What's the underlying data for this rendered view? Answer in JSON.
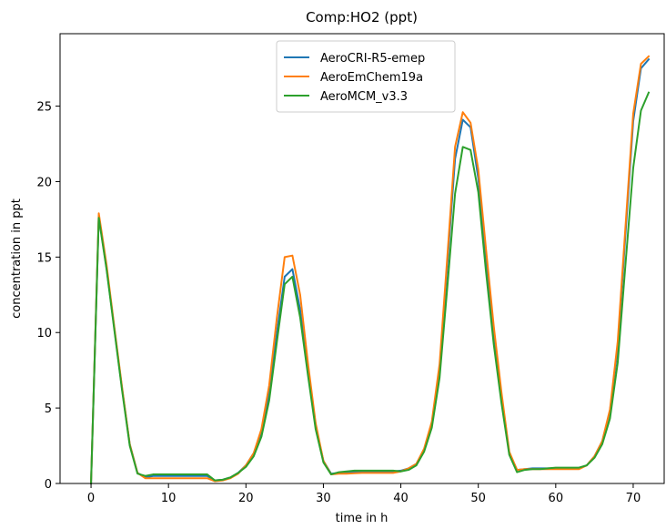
{
  "chart_data": {
    "type": "line",
    "title": "Comp:HO2 (ppt)",
    "xlabel": "time in h",
    "ylabel": "concentration in ppt",
    "xlim": [
      -4,
      74
    ],
    "ylim": [
      0,
      29.8
    ],
    "xticks": [
      0,
      10,
      20,
      30,
      40,
      50,
      60,
      70
    ],
    "yticks": [
      0,
      5,
      10,
      15,
      20,
      25
    ],
    "grid": false,
    "legend_position": "top-center",
    "x": [
      0,
      1,
      2,
      3,
      4,
      5,
      6,
      7,
      8,
      9,
      10,
      11,
      12,
      13,
      14,
      15,
      16,
      17,
      18,
      19,
      20,
      21,
      22,
      23,
      24,
      25,
      26,
      27,
      28,
      29,
      30,
      31,
      32,
      33,
      34,
      35,
      36,
      37,
      38,
      39,
      40,
      41,
      42,
      43,
      44,
      45,
      46,
      47,
      48,
      49,
      50,
      51,
      52,
      53,
      54,
      55,
      56,
      57,
      58,
      59,
      60,
      61,
      62,
      63,
      64,
      65,
      66,
      67,
      68,
      69,
      70,
      71,
      72
    ],
    "series": [
      {
        "name": "AeroCRI-R5-emep",
        "color": "#1f77b4",
        "values": [
          0,
          17.7,
          14.3,
          10.3,
          6.3,
          2.6,
          0.7,
          0.4,
          0.5,
          0.5,
          0.5,
          0.5,
          0.5,
          0.5,
          0.5,
          0.5,
          0.2,
          0.25,
          0.4,
          0.7,
          1.2,
          2.0,
          3.4,
          6.0,
          10.0,
          13.7,
          14.2,
          11.5,
          7.5,
          3.8,
          1.5,
          0.65,
          0.7,
          0.75,
          0.78,
          0.8,
          0.8,
          0.8,
          0.8,
          0.8,
          0.85,
          1.0,
          1.3,
          2.2,
          4.0,
          7.5,
          14.5,
          21.5,
          24.1,
          23.6,
          20.2,
          15.0,
          10.0,
          5.8,
          2.0,
          0.9,
          0.95,
          1.0,
          1.0,
          1.0,
          1.0,
          1.0,
          1.0,
          1.0,
          1.2,
          1.8,
          2.8,
          4.8,
          9.0,
          16.5,
          24.0,
          27.5,
          28.1
        ]
      },
      {
        "name": "AeroEmChem19a",
        "color": "#ff7f0e",
        "values": [
          0,
          17.9,
          14.5,
          10.4,
          6.4,
          2.6,
          0.7,
          0.35,
          0.35,
          0.35,
          0.35,
          0.35,
          0.35,
          0.35,
          0.35,
          0.35,
          0.15,
          0.2,
          0.35,
          0.65,
          1.2,
          2.0,
          3.6,
          6.5,
          11.0,
          15.0,
          15.1,
          12.5,
          8.0,
          4.0,
          1.5,
          0.6,
          0.65,
          0.65,
          0.68,
          0.7,
          0.7,
          0.7,
          0.7,
          0.7,
          0.8,
          1.0,
          1.3,
          2.3,
          4.1,
          7.9,
          15.0,
          22.3,
          24.6,
          23.9,
          20.8,
          15.5,
          10.4,
          6.0,
          2.1,
          0.9,
          0.95,
          0.95,
          0.95,
          0.95,
          0.95,
          0.95,
          0.95,
          0.95,
          1.2,
          1.8,
          2.8,
          4.9,
          9.4,
          17.0,
          24.5,
          27.8,
          28.3
        ]
      },
      {
        "name": "AeroMCM_v3.3",
        "color": "#2ca02c",
        "values": [
          0,
          17.6,
          14.2,
          10.2,
          6.2,
          2.5,
          0.65,
          0.5,
          0.6,
          0.6,
          0.6,
          0.6,
          0.6,
          0.6,
          0.6,
          0.6,
          0.2,
          0.25,
          0.4,
          0.7,
          1.1,
          1.8,
          3.1,
          5.5,
          9.4,
          13.2,
          13.7,
          11.0,
          7.2,
          3.6,
          1.4,
          0.6,
          0.75,
          0.8,
          0.85,
          0.85,
          0.85,
          0.85,
          0.85,
          0.85,
          0.8,
          0.9,
          1.2,
          2.1,
          3.7,
          7.0,
          13.0,
          19.2,
          22.3,
          22.1,
          19.3,
          14.0,
          9.2,
          5.3,
          1.9,
          0.75,
          0.9,
          0.95,
          0.95,
          1.0,
          1.05,
          1.05,
          1.05,
          1.05,
          1.2,
          1.7,
          2.6,
          4.3,
          8.0,
          14.5,
          20.9,
          24.7,
          25.9
        ]
      }
    ]
  }
}
